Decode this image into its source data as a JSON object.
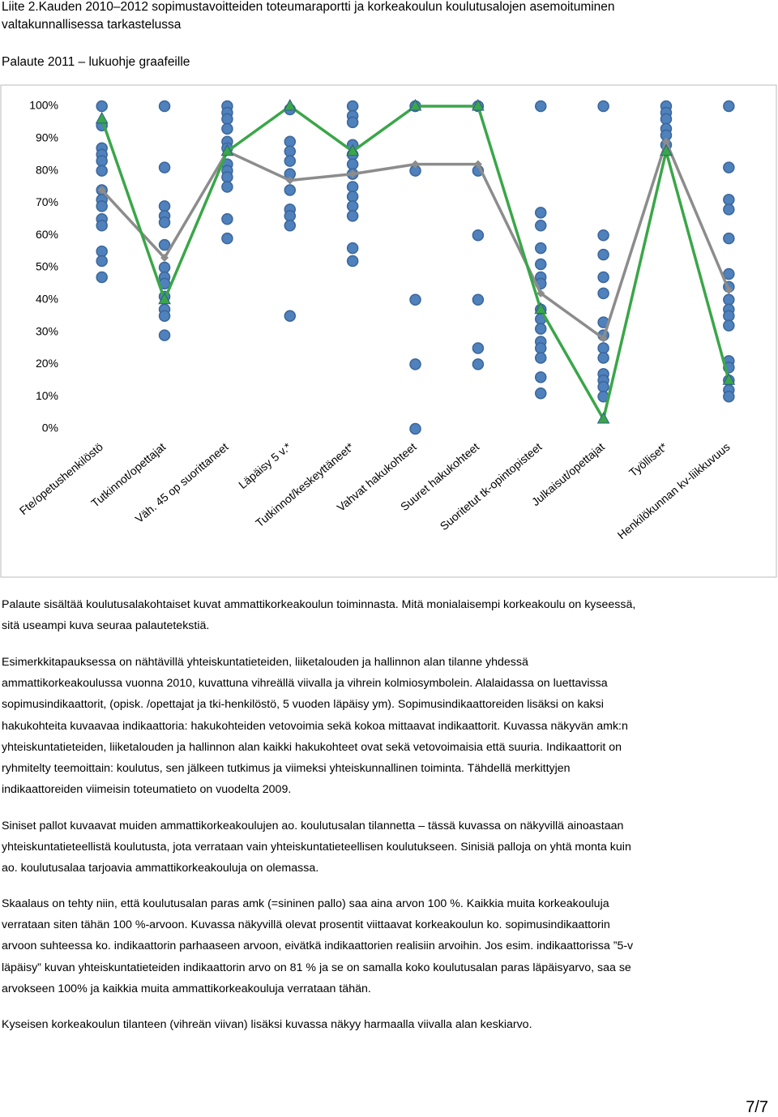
{
  "header": {
    "lines": [
      "Liite 2.Kauden 2010–2012 sopimustavoitteiden toteumaraportti ja korkeakoulun koulutusalojen asemoituminen",
      "valtakunnallisessa tarkastelussa"
    ],
    "subtitle": "Palaute 2011 – lukuohje graafeille"
  },
  "chart_data": {
    "type": "line",
    "categories": [
      "Fte/opetushenkilöstö",
      "Tutkinnot/opettajat",
      "Väh. 45 op suorittaneet",
      "Läpäisy 5 v.*",
      "Tutkinnot/keskeyttäneet*",
      "Vahvat hakukohteet",
      "Suuret hakukohteet",
      "Suoritetut tk-opintopisteet",
      "Julkaisut/opettajat",
      "Työlliset*",
      "Henkilökunnan kv-liikkuvuus"
    ],
    "series": [
      {
        "color": "#8c8c8c",
        "marker": "diamond",
        "values": [
          74,
          53,
          86,
          77,
          79,
          82,
          82,
          42,
          28,
          89,
          43
        ]
      },
      {
        "color": "#3aa648",
        "marker": "triangle",
        "values": [
          96,
          40,
          86,
          100,
          86,
          100,
          100,
          37,
          3,
          86,
          15
        ]
      }
    ],
    "points_color": "#4f81bd",
    "points": [
      [
        100,
        94,
        87,
        85,
        83,
        80,
        74,
        71,
        69,
        65,
        63,
        55,
        52,
        47
      ],
      [
        100,
        81,
        69,
        66,
        64,
        57,
        50,
        47,
        45,
        41,
        37,
        35,
        29
      ],
      [
        100,
        98,
        96,
        93,
        89,
        87,
        82,
        80,
        78,
        75,
        65,
        59
      ],
      [
        99,
        89,
        86,
        83,
        79,
        74,
        68,
        66,
        63,
        35
      ],
      [
        100,
        97,
        95,
        88,
        85,
        82,
        79,
        75,
        72,
        69,
        66,
        56,
        52
      ],
      [
        100,
        80,
        40,
        20,
        0
      ],
      [
        100,
        80,
        60,
        40,
        25,
        20
      ],
      [
        100,
        67,
        63,
        56,
        51,
        47,
        45,
        37,
        34,
        31,
        27,
        25,
        22,
        16,
        11
      ],
      [
        100,
        60,
        54,
        47,
        42,
        33,
        29,
        25,
        22,
        17,
        15,
        13,
        10
      ],
      [
        100,
        98,
        96,
        93,
        91,
        88
      ],
      [
        100,
        81,
        71,
        68,
        59,
        48,
        44,
        40,
        37,
        35,
        32,
        21,
        19,
        15,
        12,
        10
      ]
    ],
    "ylim": [
      0,
      100
    ],
    "yticks": [
      {
        "value": 0,
        "label": "0%"
      },
      {
        "value": 10,
        "label": "10%"
      },
      {
        "value": 20,
        "label": "20%"
      },
      {
        "value": 30,
        "label": "30%"
      },
      {
        "value": 40,
        "label": "40%"
      },
      {
        "value": 50,
        "label": "50%"
      },
      {
        "value": 60,
        "label": "60%"
      },
      {
        "value": 70,
        "label": "70%"
      },
      {
        "value": 80,
        "label": "80%"
      },
      {
        "value": 90,
        "label": "90%"
      },
      {
        "value": 100,
        "label": "100%"
      }
    ]
  },
  "body": {
    "paragraphs": [
      {
        "lines": [
          "Palaute sisältää koulutusalakohtaiset kuvat ammattikorkeakoulun toiminnasta. Mitä monialaisempi korkeakoulu on kyseessä,",
          "sitä useampi kuva seuraa palautetekstiä."
        ]
      },
      {
        "lines": [
          "Esimerkkitapauksessa on nähtävillä yhteiskuntatieteiden, liiketalouden ja hallinnon alan tilanne yhdessä",
          "ammattikorkeakoulussa vuonna 2010, kuvattuna vihreällä viivalla ja vihrein kolmiosymbolein. Alalaidassa on luettavissa",
          "sopimusindikaattorit, (opisk. /opettajat ja tki-henkilöstö, 5 vuoden läpäisy ym). Sopimusindikaattoreiden lisäksi on kaksi",
          "hakukohteita kuvaavaa indikaattoria: hakukohteiden vetovoimia sekä kokoa mittaavat indikaattorit. Kuvassa näkyvän amk:n",
          "yhteiskuntatieteiden, liiketalouden ja hallinnon alan kaikki hakukohteet ovat sekä vetovoimaisia että suuria. Indikaattorit on",
          "ryhmitelty teemoittain: koulutus, sen jälkeen tutkimus ja viimeksi yhteiskunnallinen toiminta.  Tähdellä merkittyjen",
          "indikaattoreiden viimeisin toteumatieto on vuodelta 2009."
        ]
      },
      {
        "lines": [
          "Siniset pallot kuvaavat muiden ammattikorkeakoulujen ao. koulutusalan tilannetta – tässä kuvassa on näkyvillä ainoastaan",
          "yhteiskuntatieteellistä koulutusta, jota verrataan vain yhteiskuntatieteellisen koulutukseen. Sinisiä palloja on yhtä monta kuin",
          "ao. koulutusalaa tarjoavia ammattikorkeakouluja on olemassa."
        ]
      },
      {
        "lines": [
          "Skaalaus on tehty niin, että koulutusalan paras amk (=sininen pallo) saa aina arvon 100 %. Kaikkia muita korkeakouluja",
          "verrataan siten tähän 100 %-arvoon. Kuvassa näkyvillä olevat prosentit viittaavat korkeakoulun ko. sopimusindikaattorin",
          "arvoon suhteessa ko. indikaattorin parhaaseen arvoon, eivätkä indikaattorien realisiin arvoihin. Jos esim. indikaattorissa ”5-v",
          "läpäisy” kuvan yhteiskuntatieteiden indikaattorin arvo on 81 % ja se on samalla koko koulutusalan paras läpäisyarvo, saa se",
          "arvokseen 100% ja kaikkia muita ammattikorkeakouluja verrataan tähän."
        ]
      },
      {
        "lines": [
          "Kyseisen korkeakoulun tilanteen (vihreän viivan) lisäksi kuvassa näkyy harmaalla viivalla alan keskiarvo."
        ]
      }
    ]
  },
  "page_number": "7/7"
}
